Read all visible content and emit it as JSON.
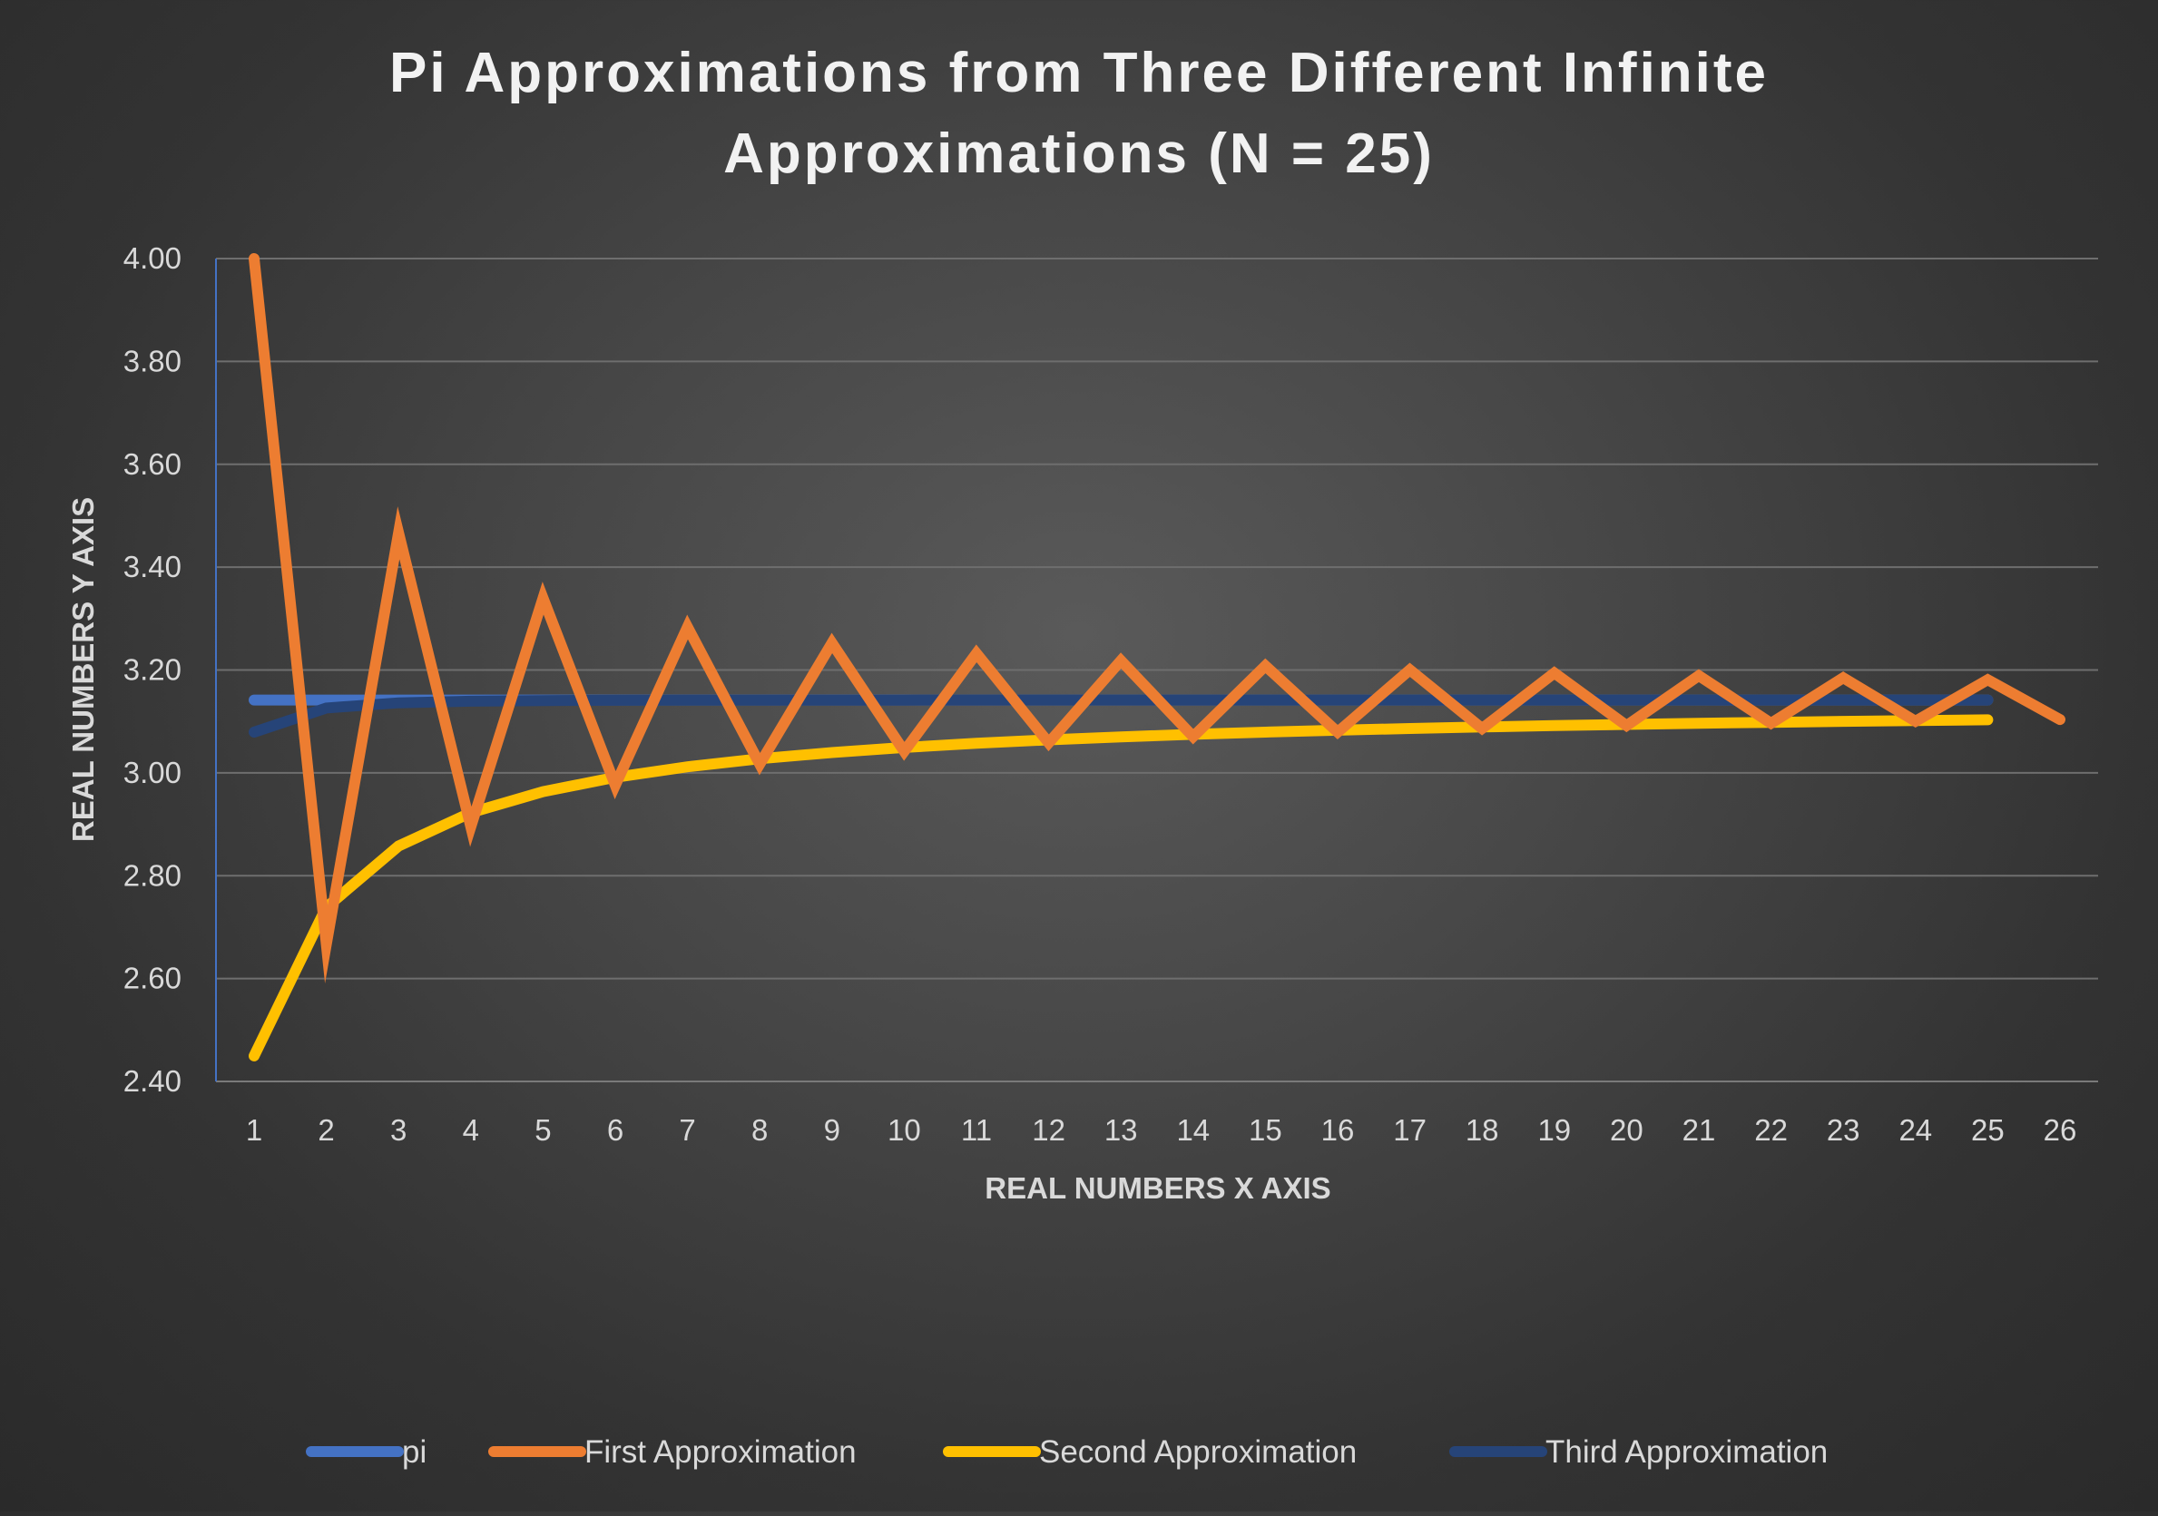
{
  "chart_data": {
    "type": "line",
    "title_lines": [
      "Pi Approximations from Three Different Infinite",
      "Approximations (N = 25)"
    ],
    "xlabel": "REAL NUMBERS X AXIS",
    "ylabel": "REAL NUMBERS Y AXIS",
    "x": [
      1,
      2,
      3,
      4,
      5,
      6,
      7,
      8,
      9,
      10,
      11,
      12,
      13,
      14,
      15,
      16,
      17,
      18,
      19,
      20,
      21,
      22,
      23,
      24,
      25,
      26
    ],
    "x_tick_labels": [
      "1",
      "2",
      "3",
      "4",
      "5",
      "6",
      "7",
      "8",
      "9",
      "10",
      "11",
      "12",
      "13",
      "14",
      "15",
      "16",
      "17",
      "18",
      "19",
      "20",
      "21",
      "22",
      "23",
      "24",
      "25",
      "26"
    ],
    "ylim": [
      2.4,
      4.0
    ],
    "y_ticks": [
      2.4,
      2.6,
      2.8,
      3.0,
      3.2,
      3.4,
      3.6,
      3.8,
      4.0
    ],
    "y_tick_labels": [
      "2.40",
      "2.60",
      "2.80",
      "3.00",
      "3.20",
      "3.40",
      "3.60",
      "3.80",
      "4.00"
    ],
    "grid": true,
    "legend_position": "bottom",
    "series": [
      {
        "name": "pi",
        "color": "#4472c4",
        "values": [
          3.1416,
          3.1416,
          3.1416,
          3.1416,
          3.1416,
          3.1416,
          3.1416,
          3.1416,
          3.1416,
          3.1416,
          3.1416,
          3.1416,
          3.1416,
          3.1416,
          3.1416,
          3.1416,
          3.1416,
          3.1416,
          3.1416,
          3.1416,
          3.1416,
          3.1416,
          3.1416,
          3.1416,
          3.1416,
          null
        ]
      },
      {
        "name": "First Approximation",
        "color": "#ed7d31",
        "values": [
          4.0,
          2.6667,
          3.4667,
          2.8952,
          3.3397,
          2.976,
          3.2837,
          3.0171,
          3.2524,
          3.0418,
          3.2323,
          3.0584,
          3.2184,
          3.0703,
          3.2082,
          3.0792,
          3.2004,
          3.0862,
          3.1941,
          3.0918,
          3.189,
          3.0964,
          3.1848,
          3.1003,
          3.1812,
          3.1036
        ]
      },
      {
        "name": "Second Approximation",
        "color": "#ffc000",
        "values": [
          2.4495,
          2.7386,
          2.8577,
          2.9226,
          2.9634,
          2.9914,
          3.0118,
          3.0274,
          3.0395,
          3.0494,
          3.0574,
          3.0642,
          3.07,
          3.0749,
          3.0792,
          3.0829,
          3.0862,
          3.0892,
          3.0918,
          3.0942,
          3.0964,
          3.0983,
          3.1001,
          3.1017,
          3.1032,
          null
        ]
      },
      {
        "name": "Third Approximation",
        "color": "#264478",
        "values": [
          3.0792,
          3.126,
          3.1361,
          3.1394,
          3.1405,
          3.141,
          3.1413,
          3.1414,
          3.1415,
          3.1415,
          3.1416,
          3.1416,
          3.1416,
          3.1416,
          3.1416,
          3.1416,
          3.1416,
          3.1416,
          3.1416,
          3.1416,
          3.1416,
          3.1416,
          3.1416,
          3.1416,
          3.1416,
          null
        ]
      }
    ]
  }
}
